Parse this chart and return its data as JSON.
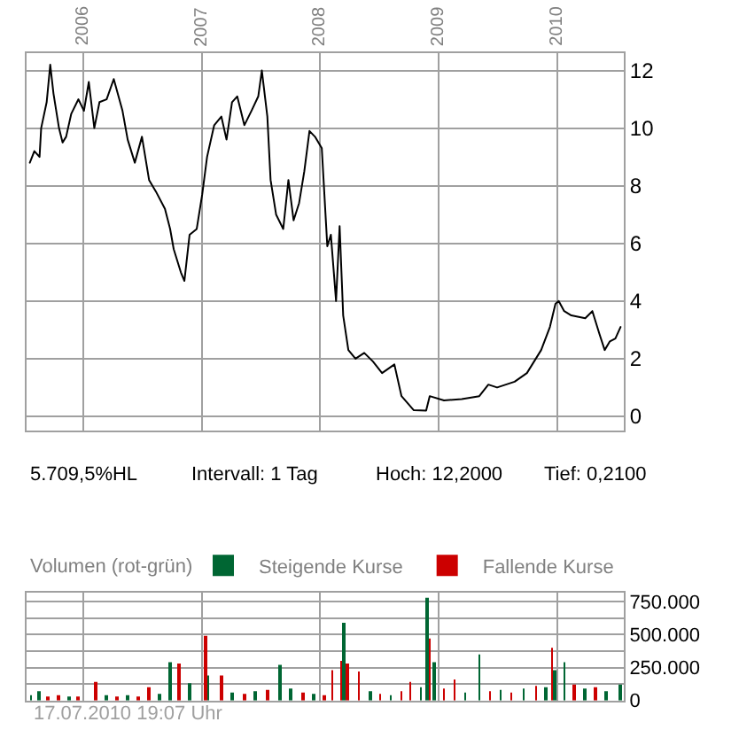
{
  "chart_data": [
    {
      "type": "line",
      "color": "#000000",
      "marker": "none",
      "line_style": "solid",
      "grid": true,
      "x": [
        "2005-07-19",
        "2005-08-02",
        "2005-08-18",
        "2005-08-23",
        "2005-09-09",
        "2005-09-20",
        "2005-09-30",
        "2005-10-17",
        "2005-10-28",
        "2005-11-08",
        "2005-11-24",
        "2005-12-16",
        "2006-01-02",
        "2006-01-17",
        "2006-02-03",
        "2006-02-19",
        "2006-03-13",
        "2006-04-04",
        "2006-05-01",
        "2006-05-17",
        "2006-06-08",
        "2006-06-30",
        "2006-07-22",
        "2006-08-12",
        "2006-09-09",
        "2006-09-25",
        "2006-10-06",
        "2006-10-28",
        "2006-11-08",
        "2006-11-24",
        "2006-12-16",
        "2007-01-02",
        "2007-01-17",
        "2007-02-08",
        "2007-03-02",
        "2007-03-18",
        "2007-04-04",
        "2007-04-20",
        "2007-05-12",
        "2007-06-03",
        "2007-06-24",
        "2007-07-05",
        "2007-07-22",
        "2007-08-01",
        "2007-08-18",
        "2007-09-09",
        "2007-09-25",
        "2007-10-11",
        "2007-10-28",
        "2007-11-13",
        "2007-11-29",
        "2007-12-16",
        "2008-01-06",
        "2008-01-23",
        "2008-02-03",
        "2008-02-19",
        "2008-03-01",
        "2008-03-12",
        "2008-03-28",
        "2008-04-19",
        "2008-05-16",
        "2008-06-12",
        "2008-07-10",
        "2008-08-17",
        "2008-09-08",
        "2008-10-16",
        "2008-11-23",
        "2008-12-04",
        "2009-01-17",
        "2009-03-13",
        "2009-05-06",
        "2009-06-03",
        "2009-06-30",
        "2009-08-23",
        "2009-09-30",
        "2009-11-13",
        "2009-12-10",
        "2009-12-27",
        "2010-01-06",
        "2010-01-23",
        "2010-02-14",
        "2010-03-29",
        "2010-04-20",
        "2010-05-12",
        "2010-05-28",
        "2010-06-13",
        "2010-06-30",
        "2010-07-16"
      ],
      "values": [
        8.8,
        9.2,
        9.0,
        10.0,
        10.9,
        12.2,
        11.2,
        10.0,
        9.5,
        9.7,
        10.5,
        11.0,
        10.6,
        11.6,
        10.0,
        10.9,
        11.0,
        11.7,
        10.6,
        9.6,
        8.8,
        9.7,
        8.2,
        7.8,
        7.2,
        6.5,
        5.8,
        5.0,
        4.7,
        6.3,
        6.5,
        7.7,
        9.0,
        10.1,
        10.4,
        9.6,
        10.9,
        11.1,
        10.1,
        10.6,
        11.1,
        12.0,
        10.4,
        8.2,
        7.0,
        6.5,
        8.2,
        6.8,
        7.4,
        8.5,
        9.9,
        9.7,
        9.3,
        5.9,
        6.3,
        4.0,
        6.6,
        3.5,
        2.3,
        2.0,
        2.2,
        1.9,
        1.5,
        1.8,
        0.7,
        0.21,
        0.2,
        0.7,
        0.55,
        0.6,
        0.7,
        1.1,
        1.0,
        1.2,
        1.5,
        2.3,
        3.1,
        3.9,
        4.0,
        3.65,
        3.5,
        3.4,
        3.65,
        2.85,
        2.3,
        2.6,
        2.7,
        3.1
      ],
      "xlim": [
        "2005-07-09",
        "2010-07-26"
      ],
      "ylim": [
        -0.5,
        12.6
      ],
      "xticks": [
        {
          "value": "2006-01-01",
          "label": "2006"
        },
        {
          "value": "2007-01-01",
          "label": "2007"
        },
        {
          "value": "2008-01-01",
          "label": "2008"
        },
        {
          "value": "2009-01-01",
          "label": "2009"
        },
        {
          "value": "2010-01-01",
          "label": "2010"
        }
      ],
      "yticks": [
        0,
        2,
        4,
        6,
        8,
        10,
        12
      ],
      "annotations": [
        "5.709,5%HL",
        "Intervall: 1 Tag",
        "Hoch: 12,2000",
        "Tief: 0,2100"
      ]
    },
    {
      "type": "bar",
      "title": "Volumen (rot-grün)",
      "grid": true,
      "legend": "top right",
      "tick_labels": "y",
      "x": [
        "2005-07-22",
        "2005-08-18",
        "2005-09-14",
        "2005-10-17",
        "2005-11-18",
        "2005-12-16",
        "2006-02-08",
        "2006-03-13",
        "2006-04-15",
        "2006-05-17",
        "2006-06-19",
        "2006-07-22",
        "2006-08-23",
        "2006-09-25",
        "2006-10-22",
        "2006-11-24",
        "2007-01-12",
        "2007-01-20",
        "2007-03-02",
        "2007-04-04",
        "2007-05-12",
        "2007-06-13",
        "2007-07-22",
        "2007-08-29",
        "2007-09-30",
        "2007-11-08",
        "2007-12-10",
        "2008-01-12",
        "2008-02-08",
        "2008-03-06",
        "2008-03-13",
        "2008-03-23",
        "2008-04-30",
        "2008-06-02",
        "2008-07-04",
        "2008-08-06",
        "2008-09-08",
        "2008-10-05",
        "2008-11-07",
        "2008-11-27",
        "2008-12-04",
        "2008-12-16",
        "2009-01-17",
        "2009-02-19",
        "2009-03-24",
        "2009-05-06",
        "2009-06-08",
        "2009-07-11",
        "2009-08-12",
        "2009-09-20",
        "2009-10-28",
        "2009-11-29",
        "2009-12-17",
        "2009-12-23",
        "2010-01-24",
        "2010-02-24",
        "2010-03-29",
        "2010-05-01",
        "2010-06-03",
        "2010-07-16"
      ],
      "series": [
        {
          "name": "Steigende Kurse",
          "color": "#006633",
          "values": [
            40000,
            70000,
            null,
            null,
            30000,
            null,
            null,
            40000,
            null,
            40000,
            null,
            null,
            50000,
            290000,
            null,
            130000,
            null,
            190000,
            null,
            60000,
            null,
            70000,
            null,
            270000,
            90000,
            null,
            50000,
            null,
            null,
            null,
            590000,
            null,
            null,
            70000,
            null,
            40000,
            null,
            null,
            100000,
            780000,
            null,
            290000,
            null,
            null,
            60000,
            350000,
            null,
            80000,
            null,
            90000,
            null,
            100000,
            null,
            230000,
            290000,
            null,
            90000,
            null,
            70000,
            120000
          ]
        },
        {
          "name": "Fallende Kurse",
          "color": "#cc0000",
          "values": [
            null,
            null,
            30000,
            40000,
            null,
            30000,
            140000,
            null,
            30000,
            null,
            30000,
            100000,
            null,
            null,
            280000,
            null,
            490000,
            null,
            190000,
            null,
            50000,
            null,
            80000,
            null,
            null,
            60000,
            null,
            40000,
            230000,
            300000,
            null,
            280000,
            220000,
            null,
            50000,
            null,
            70000,
            140000,
            null,
            null,
            470000,
            null,
            90000,
            160000,
            null,
            null,
            70000,
            null,
            60000,
            null,
            110000,
            null,
            400000,
            null,
            null,
            120000,
            null,
            100000,
            null,
            null
          ]
        }
      ],
      "xlim": [
        "2005-07-09",
        "2010-07-26"
      ],
      "ylim": [
        0,
        820000
      ],
      "xticks": [
        {
          "value": "2006-01-01",
          "label": null
        },
        {
          "value": "2007-01-01",
          "label": null
        },
        {
          "value": "2008-01-01",
          "label": null
        },
        {
          "value": "2009-01-01",
          "label": null
        },
        {
          "value": "2010-01-01",
          "label": null
        }
      ],
      "yticks": [
        0,
        {
          "value": 125000,
          "label": null
        },
        {
          "value": 250000,
          "label": "250.000"
        },
        {
          "value": 375000,
          "label": null
        },
        {
          "value": 500000,
          "label": "500.000"
        },
        {
          "value": 625000,
          "label": null
        },
        {
          "value": 750000,
          "label": "750.000"
        }
      ],
      "annotations": [
        "17.07.2010 19:07 Uhr"
      ]
    }
  ]
}
